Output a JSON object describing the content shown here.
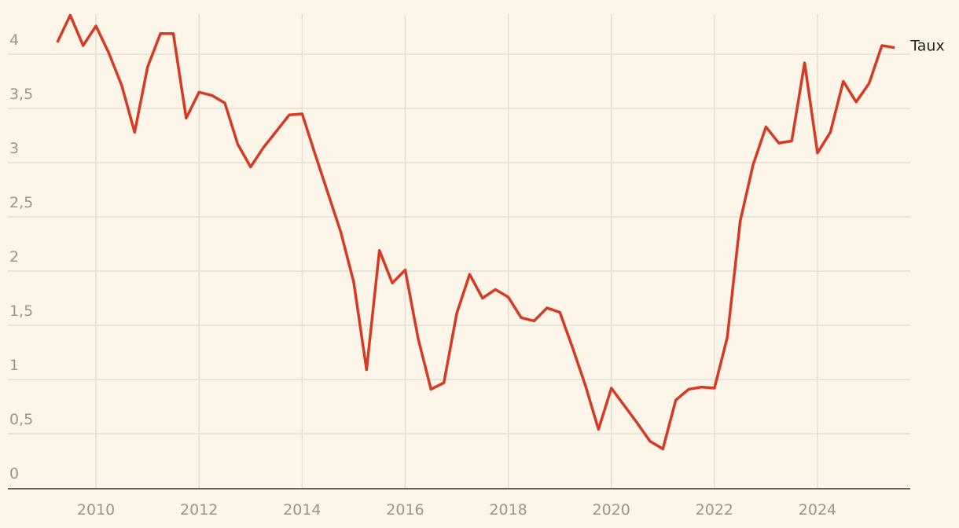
{
  "chart_data": {
    "type": "line",
    "x": [
      2009.25,
      2009.5,
      2009.75,
      2010,
      2010.25,
      2010.5,
      2010.75,
      2011,
      2011.25,
      2011.5,
      2011.75,
      2012,
      2012.25,
      2012.5,
      2012.75,
      2013,
      2013.25,
      2013.5,
      2013.75,
      2014,
      2014.25,
      2014.5,
      2014.75,
      2015,
      2015.25,
      2015.5,
      2015.75,
      2016,
      2016.25,
      2016.5,
      2016.75,
      2017,
      2017.25,
      2017.5,
      2017.75,
      2018,
      2018.25,
      2018.5,
      2018.75,
      2019,
      2019.25,
      2019.5,
      2019.75,
      2020,
      2020.25,
      2020.5,
      2020.75,
      2021,
      2021.25,
      2021.5,
      2021.75,
      2022,
      2022.25,
      2022.5,
      2022.75,
      2023,
      2023.25,
      2023.5,
      2023.75,
      2024,
      2024.25,
      2024.5,
      2024.75,
      2025,
      2025.25,
      2025.5
    ],
    "series": [
      {
        "name": "Taux",
        "color": "#d63a22",
        "values": [
          4.11,
          4.36,
          4.08,
          4.26,
          4.01,
          3.71,
          3.28,
          3.88,
          4.19,
          4.19,
          3.41,
          3.65,
          3.62,
          3.55,
          3.17,
          2.96,
          3.14,
          3.29,
          3.44,
          3.45,
          3.08,
          2.72,
          2.36,
          1.9,
          1.09,
          2.19,
          1.89,
          2.01,
          1.38,
          0.91,
          0.97,
          1.61,
          1.97,
          1.75,
          1.83,
          1.76,
          1.57,
          1.54,
          1.66,
          1.62,
          1.29,
          0.94,
          0.54,
          0.92,
          0.76,
          0.6,
          0.43,
          0.36,
          0.81,
          0.91,
          0.93,
          0.92,
          1.39,
          2.46,
          2.98,
          3.33,
          3.18,
          3.2,
          3.92,
          3.09,
          3.28,
          3.75,
          3.56,
          3.73,
          4.08,
          4.06
        ]
      }
    ],
    "xlim": [
      2008.29,
      2025.8
    ],
    "xticks": [
      2010,
      2012,
      2014,
      2016,
      2018,
      2020,
      2022,
      2024
    ],
    "ylim": [
      0,
      4.5
    ],
    "yticks": [
      0,
      {
        "value": 0.5,
        "label": "0,5"
      },
      1,
      {
        "value": 1.5,
        "label": "1,5"
      },
      2,
      {
        "value": 2.5,
        "label": "2,5"
      },
      3,
      {
        "value": 3.5,
        "label": "3,5"
      },
      4
    ],
    "grid": true
  }
}
